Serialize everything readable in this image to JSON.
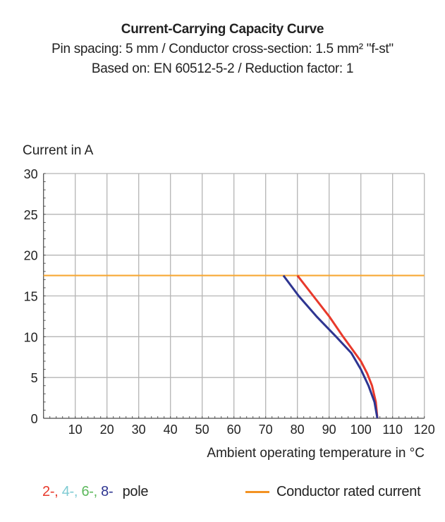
{
  "chart_data": {
    "type": "line",
    "title": "Current-Carrying Capacity Curve",
    "subtitle_lines": [
      "Pin spacing: 5 mm / Conductor cross-section: 1.5 mm² \"f-st\"",
      "Based on: EN 60512-5-2 / Reduction factor: 1"
    ],
    "ylabel": "Current in A",
    "xlabel": "Ambient operating temperature in °C",
    "xlim": [
      0,
      120
    ],
    "ylim": [
      0,
      30
    ],
    "xticks": [
      10,
      20,
      30,
      40,
      50,
      60,
      70,
      80,
      90,
      100,
      110,
      120
    ],
    "yticks": [
      0,
      5,
      10,
      15,
      20,
      25,
      30
    ],
    "grid": true,
    "series": [
      {
        "color": "#e8392b",
        "points": [
          [
            80,
            17.5
          ],
          [
            85,
            15
          ],
          [
            90,
            12.5
          ],
          [
            94.4,
            10
          ],
          [
            100,
            7
          ],
          [
            102,
            5.5
          ],
          [
            103.5,
            4
          ],
          [
            104.7,
            2
          ],
          [
            105.2,
            0
          ]
        ]
      },
      {
        "color": "#2e3591",
        "points": [
          [
            75.6,
            17.5
          ],
          [
            80.4,
            15
          ],
          [
            86,
            12.5
          ],
          [
            92.2,
            10
          ],
          [
            97,
            8
          ],
          [
            100,
            6
          ],
          [
            102.4,
            4
          ],
          [
            104.3,
            2
          ],
          [
            105.2,
            0
          ]
        ]
      }
    ],
    "reference_line": {
      "label": "Conductor rated current",
      "y": 17.5,
      "color": "#f7a834"
    },
    "legend": {
      "items": [
        {
          "label": "2-,",
          "color": "#e8392b"
        },
        {
          "label": "4-,",
          "color": "#7ecbd3"
        },
        {
          "label": "6-,",
          "color": "#5cb85c"
        },
        {
          "label": "8-",
          "color": "#2e3591"
        }
      ],
      "suffix": "pole",
      "rated_label": "Conductor rated current",
      "rated_color": "#f39223"
    }
  }
}
